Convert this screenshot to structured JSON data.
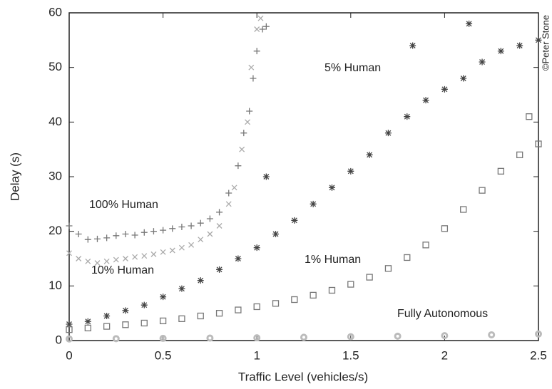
{
  "chart_data": {
    "type": "scatter",
    "x_label": "Traffic Level (vehicles/s)",
    "y_label": "Delay (s)",
    "credit": "©Peter Stone",
    "xlim": [
      0,
      2.5
    ],
    "ylim": [
      0,
      60
    ],
    "xticks": [
      0,
      0.5,
      1,
      1.5,
      2,
      2.5
    ],
    "yticks": [
      0,
      10,
      20,
      30,
      40,
      50,
      60
    ],
    "series": [
      {
        "name": "100% Human",
        "color": "#777777",
        "marker": "plus",
        "x": [
          0,
          0.05,
          0.1,
          0.15,
          0.2,
          0.25,
          0.3,
          0.35,
          0.4,
          0.45,
          0.5,
          0.55,
          0.6,
          0.65,
          0.7,
          0.75,
          0.8,
          0.85,
          0.9,
          0.93,
          0.96,
          0.98,
          1.0,
          1.03,
          1.05
        ],
        "values": [
          21,
          19.5,
          18.5,
          18.6,
          18.8,
          19.2,
          19.5,
          19.3,
          19.8,
          20,
          20.2,
          20.5,
          20.8,
          21,
          21.5,
          22.3,
          23.5,
          27,
          32,
          38,
          42,
          48,
          53,
          57,
          57.5
        ]
      },
      {
        "name": "10% Human",
        "color": "#aaaaaa",
        "marker": "cross",
        "x": [
          0,
          0.05,
          0.1,
          0.15,
          0.2,
          0.25,
          0.3,
          0.35,
          0.4,
          0.45,
          0.5,
          0.55,
          0.6,
          0.65,
          0.7,
          0.75,
          0.8,
          0.85,
          0.88,
          0.92,
          0.95,
          0.97,
          1.0,
          1.02
        ],
        "values": [
          16,
          15,
          14.5,
          14.2,
          14.5,
          14.8,
          15,
          15.3,
          15.5,
          15.8,
          16.2,
          16.5,
          17,
          17.5,
          18.5,
          19.5,
          21,
          25,
          28,
          35,
          40,
          50,
          57,
          59
        ]
      },
      {
        "name": "5% Human",
        "color": "#444444",
        "marker": "star",
        "x": [
          0,
          0.1,
          0.2,
          0.3,
          0.4,
          0.5,
          0.6,
          0.7,
          0.8,
          0.9,
          1.0,
          1.05,
          1.1,
          1.2,
          1.3,
          1.4,
          1.5,
          1.6,
          1.7,
          1.8,
          1.83,
          1.9,
          2.0,
          2.1,
          2.13,
          2.2,
          2.3,
          2.4,
          2.5
        ],
        "values": [
          3,
          3.5,
          4.5,
          5.5,
          6.5,
          8,
          9.5,
          11,
          13,
          15,
          17,
          30,
          19.5,
          22,
          25,
          28,
          31,
          34,
          38,
          41,
          54,
          44,
          46,
          48,
          58,
          51,
          53,
          54,
          55
        ]
      },
      {
        "name": "1% Human",
        "color": "#777777",
        "marker": "square",
        "x": [
          0,
          0.1,
          0.2,
          0.3,
          0.4,
          0.5,
          0.6,
          0.7,
          0.8,
          0.9,
          1.0,
          1.1,
          1.2,
          1.3,
          1.4,
          1.5,
          1.6,
          1.7,
          1.8,
          1.9,
          2.0,
          2.1,
          2.2,
          2.3,
          2.4,
          2.45,
          2.5
        ],
        "values": [
          2,
          2.3,
          2.6,
          2.9,
          3.2,
          3.6,
          4,
          4.5,
          5,
          5.6,
          6.2,
          6.8,
          7.5,
          8.3,
          9.2,
          10.3,
          11.6,
          13.2,
          15.2,
          17.5,
          20.5,
          24,
          27.5,
          31,
          34,
          41,
          36
        ]
      },
      {
        "name": "Fully Autonomous",
        "color": "#bbbbbb",
        "marker": "circle",
        "x": [
          0,
          0.25,
          0.5,
          0.75,
          1.0,
          1.25,
          1.5,
          1.75,
          2.0,
          2.25,
          2.5
        ],
        "values": [
          0.3,
          0.35,
          0.4,
          0.45,
          0.5,
          0.6,
          0.7,
          0.8,
          0.9,
          1.05,
          1.2
        ]
      }
    ]
  }
}
